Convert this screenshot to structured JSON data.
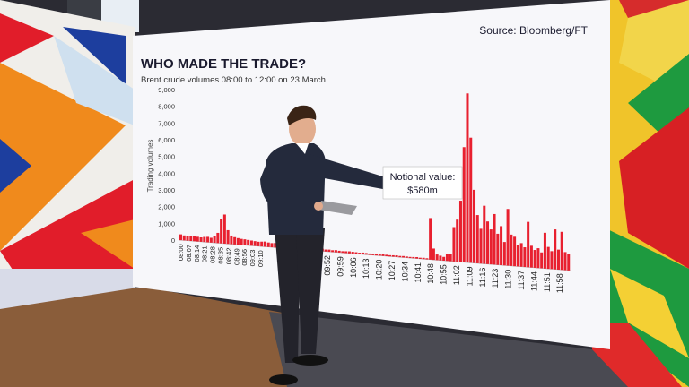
{
  "screen": {
    "title": "WHO MADE THE TRADE?",
    "subtitle": "Brent crude volumes 08:00 to 12:00 on 23 March",
    "source": "Source: Bloomberg/FT",
    "ylabel": "Trading volumes",
    "callout": {
      "line1": "Notional value:",
      "line2": "$580m"
    }
  },
  "colors": {
    "bar": "#e8202f",
    "title": "#1a1a2e",
    "screen_bg": "#f7f7fa"
  },
  "chart_data": {
    "type": "bar",
    "title": "WHO MADE THE TRADE?",
    "subtitle": "Brent crude volumes 08:00 to 12:00 on 23 March",
    "ylabel": "Trading volumes",
    "xlabel": "",
    "ylim": [
      0,
      9000
    ],
    "yticks": [
      "9,000",
      "8,000",
      "7,000",
      "6,000",
      "5,000",
      "4,000",
      "3,000",
      "2,000",
      "1,000",
      "0"
    ],
    "xticks": [
      "08:00",
      "08:07",
      "08:14",
      "08:21",
      "08:28",
      "08:35",
      "08:42",
      "08:49",
      "08:56",
      "09:03",
      "09:10",
      "09:52",
      "09:59",
      "10:06",
      "10:13",
      "10:20",
      "10:27",
      "10:34",
      "10:41",
      "10:48",
      "10:55",
      "11:02",
      "11:09",
      "11:16",
      "11:23",
      "11:30",
      "11:37",
      "11:44",
      "11:51",
      "11:58"
    ],
    "values": [
      350,
      300,
      280,
      320,
      300,
      280,
      260,
      300,
      320,
      280,
      400,
      600,
      1400,
      1700,
      800,
      500,
      420,
      380,
      350,
      340,
      320,
      300,
      280,
      260,
      280,
      300,
      260,
      240,
      260,
      220,
      240,
      200,
      220,
      180,
      200,
      160,
      180,
      150,
      140,
      160,
      130,
      120,
      140,
      110,
      120,
      100,
      120,
      100,
      90,
      100,
      110,
      100,
      90,
      80,
      100,
      90,
      80,
      90,
      100,
      80,
      90,
      80,
      70,
      80,
      90,
      70,
      80,
      70,
      60,
      70,
      80,
      60,
      70,
      60,
      2200,
      600,
      300,
      250,
      200,
      350,
      400,
      1800,
      2200,
      3200,
      6000,
      8800,
      6500,
      3800,
      2500,
      1800,
      3000,
      2200,
      1800,
      2600,
      1600,
      2000,
      1200,
      2900,
      1600,
      1500,
      1100,
      1200,
      1000,
      2300,
      1100,
      900,
      1000,
      800,
      1800,
      1100,
      900,
      2000,
      1000,
      1900,
      900,
      800
    ],
    "source": "Source: Bloomberg/FT",
    "annotations": [
      "Notional value:",
      "$580m"
    ],
    "grid": false,
    "legend": "none"
  }
}
